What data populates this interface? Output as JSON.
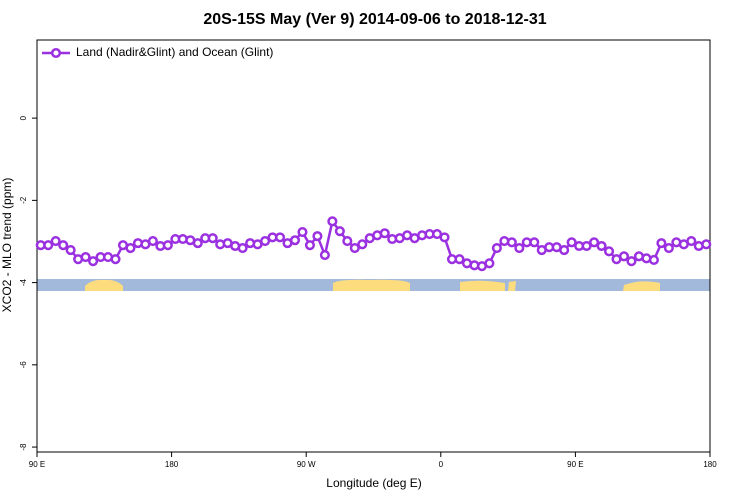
{
  "chart_data": {
    "type": "line",
    "title": "20S-15S May (Ver 9)   2014-09-06 to 2018-12-31",
    "xlabel": "Longitude (deg E)",
    "ylabel": "XCO2 - MLO trend (ppm)",
    "xlim": [
      90,
      540
    ],
    "ylim": [
      -8.12,
      1.9
    ],
    "xticks": [
      {
        "value": 90,
        "label": "90 E"
      },
      {
        "value": 180,
        "label": "180"
      },
      {
        "value": 270,
        "label": "90 W"
      },
      {
        "value": 360,
        "label": "0"
      },
      {
        "value": 450,
        "label": "90 E"
      },
      {
        "value": 540,
        "label": "180"
      }
    ],
    "yticks": [
      0,
      -2,
      -4,
      -6,
      -8
    ],
    "grid": false,
    "legend": "upper left",
    "x": [
      92.5,
      97.5,
      102.5,
      107.5,
      112.5,
      117.5,
      122.5,
      127.5,
      132.5,
      137.5,
      142.5,
      147.5,
      152.5,
      157.5,
      162.5,
      167.5,
      172.5,
      177.5,
      182.5,
      187.5,
      192.5,
      197.5,
      202.5,
      207.5,
      212.5,
      217.5,
      222.5,
      227.5,
      232.5,
      237.5,
      242.5,
      247.5,
      252.5,
      257.5,
      262.5,
      267.5,
      272.5,
      277.5,
      282.5,
      287.5,
      292.5,
      297.5,
      302.5,
      307.5,
      312.5,
      317.5,
      322.5,
      327.5,
      332.5,
      337.5,
      342.5,
      347.5,
      352.5,
      357.5,
      362.5,
      367.5,
      372.5,
      377.5,
      382.5,
      387.5,
      392.5,
      397.5,
      402.5,
      407.5,
      412.5,
      417.5,
      422.5,
      427.5,
      432.5,
      437.5,
      442.5,
      447.5,
      452.5,
      457.5,
      462.5,
      467.5,
      472.5,
      477.5,
      482.5,
      487.5,
      492.5,
      497.5,
      502.5,
      507.5,
      512.5,
      517.5,
      522.5,
      527.5,
      532.5,
      537.5
    ],
    "series": [
      {
        "name": "Land (Nadir&Glint) and Ocean (Glint)",
        "color": "#9b30e0",
        "values": [
          -3.09,
          -3.09,
          -2.99,
          -3.09,
          -3.21,
          -3.43,
          -3.38,
          -3.48,
          -3.38,
          -3.38,
          -3.43,
          -3.09,
          -3.16,
          -3.04,
          -3.07,
          -2.99,
          -3.11,
          -3.09,
          -2.94,
          -2.94,
          -2.97,
          -3.04,
          -2.92,
          -2.92,
          -3.07,
          -3.04,
          -3.11,
          -3.16,
          -3.04,
          -3.07,
          -2.99,
          -2.9,
          -2.9,
          -3.04,
          -2.97,
          -2.77,
          -3.09,
          -2.87,
          -3.33,
          -2.51,
          -2.75,
          -2.99,
          -3.16,
          -3.07,
          -2.92,
          -2.85,
          -2.8,
          -2.94,
          -2.92,
          -2.85,
          -2.92,
          -2.85,
          -2.82,
          -2.82,
          -2.9,
          -3.43,
          -3.43,
          -3.53,
          -3.58,
          -3.6,
          -3.53,
          -3.16,
          -2.99,
          -3.02,
          -3.16,
          -3.02,
          -3.02,
          -3.21,
          -3.14,
          -3.14,
          -3.21,
          -3.02,
          -3.11,
          -3.11,
          -3.02,
          -3.11,
          -3.24,
          -3.43,
          -3.36,
          -3.48,
          -3.36,
          -3.41,
          -3.45,
          -3.04,
          -3.16,
          -3.02,
          -3.07,
          -2.99,
          -3.11,
          -3.07
        ]
      }
    ]
  }
}
